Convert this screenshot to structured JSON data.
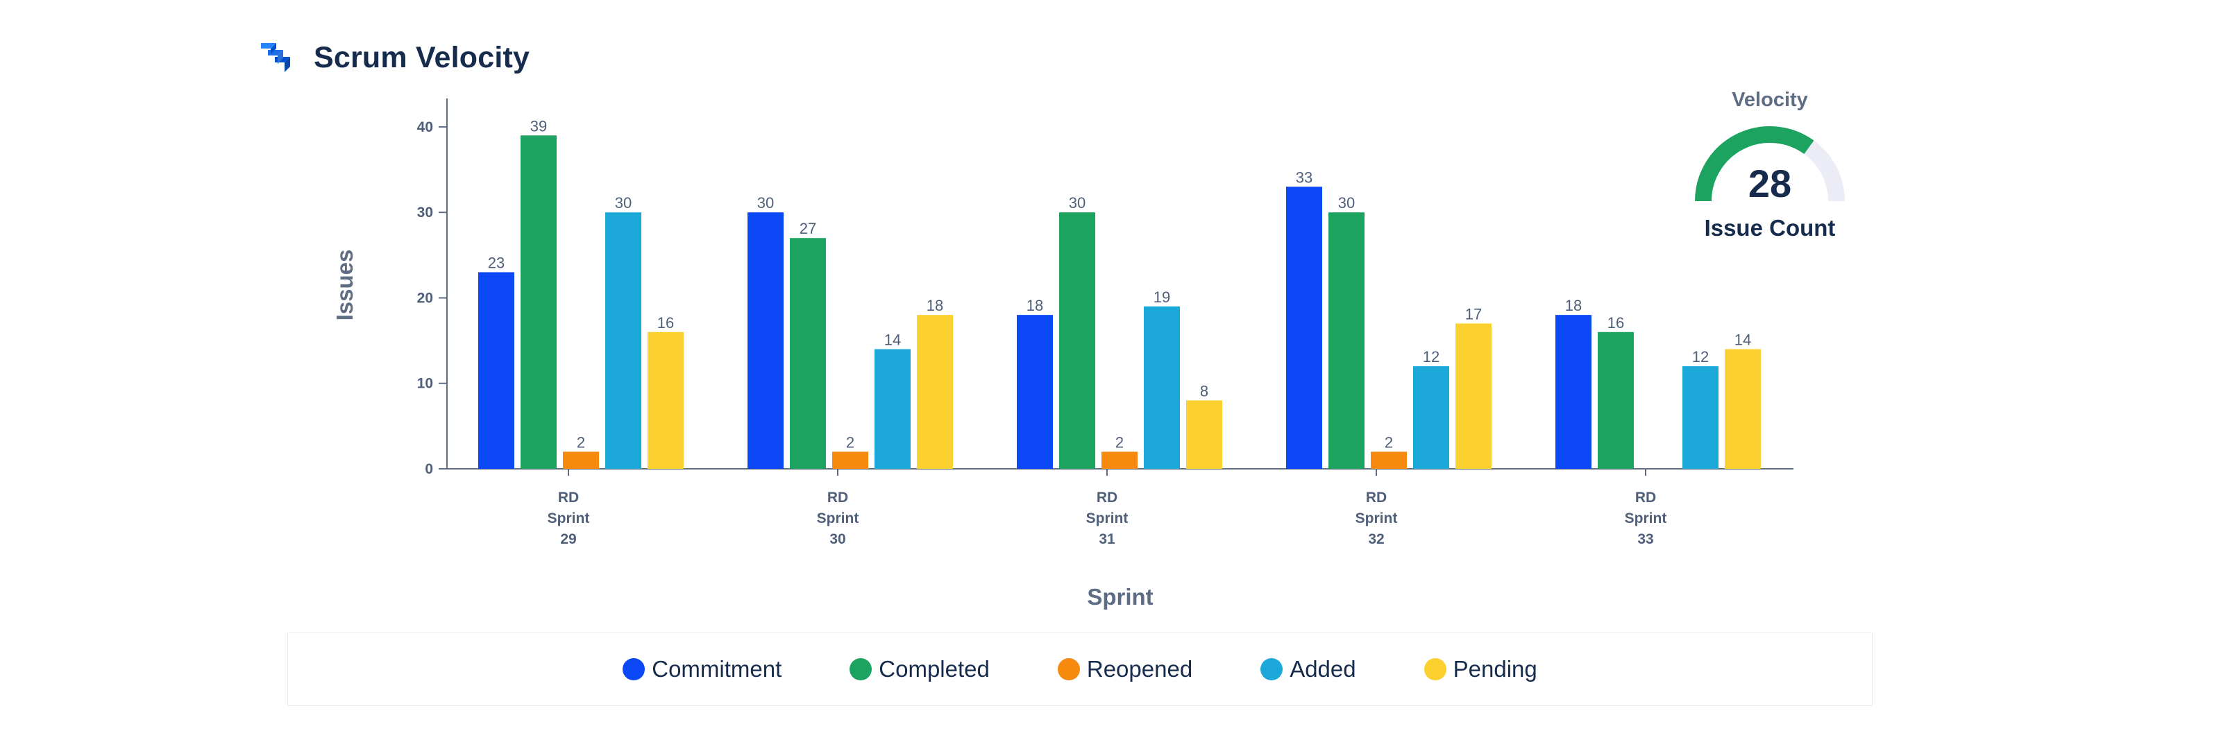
{
  "header": {
    "title": "Scrum Velocity",
    "icon": "jira-logo-icon"
  },
  "gauge": {
    "title": "Velocity",
    "value": "28",
    "label": "Issue Count",
    "fraction": 0.7,
    "fill_color": "#1ba35f",
    "track_color": "#ebecf6"
  },
  "colors": {
    "Commitment": "#0b47f5",
    "Completed": "#1ba35f",
    "Reopened": "#f68a0e",
    "Added": "#1ca9d9",
    "Pending": "#fcd02e"
  },
  "chart_data": {
    "type": "bar",
    "ylabel": "Issues",
    "xlabel": "Sprint",
    "ylim": [
      0,
      43
    ],
    "yticks": [
      0,
      10,
      20,
      30,
      40
    ],
    "grid": false,
    "legend_position": "bottom",
    "categories": [
      [
        "RD",
        "Sprint",
        "29"
      ],
      [
        "RD",
        "Sprint",
        "30"
      ],
      [
        "RD",
        "Sprint",
        "31"
      ],
      [
        "RD",
        "Sprint",
        "32"
      ],
      [
        "RD",
        "Sprint",
        "33"
      ]
    ],
    "series": [
      {
        "name": "Commitment",
        "values": [
          23,
          30,
          18,
          33,
          18
        ]
      },
      {
        "name": "Completed",
        "values": [
          39,
          27,
          30,
          30,
          16
        ]
      },
      {
        "name": "Reopened",
        "values": [
          2,
          2,
          2,
          2,
          null
        ]
      },
      {
        "name": "Added",
        "values": [
          30,
          14,
          19,
          12,
          12
        ]
      },
      {
        "name": "Pending",
        "values": [
          16,
          18,
          8,
          17,
          14
        ]
      }
    ]
  }
}
